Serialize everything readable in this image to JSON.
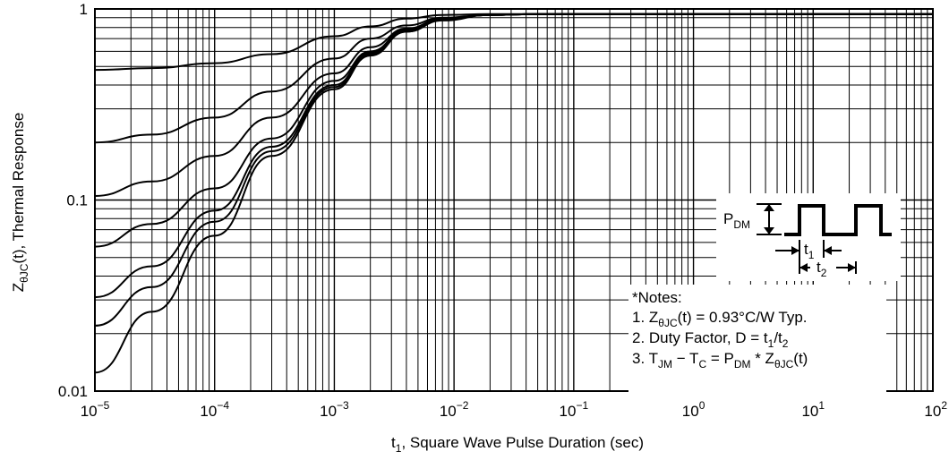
{
  "chart_data": {
    "type": "line",
    "title": "",
    "xlabel": {
      "base": "t",
      "sub": "1",
      "rest": ", Square Wave Pulse Duration (sec)"
    },
    "ylabel": {
      "base": "Z",
      "sub": "θJC",
      "rest": "(t), Thermal Response"
    },
    "x_scale": "log",
    "y_scale": "log",
    "xlim": [
      1e-05,
      100
    ],
    "ylim": [
      0.01,
      1
    ],
    "grid": true,
    "x_ticks": [
      {
        "base": "10",
        "exp": "−5",
        "value": 1e-05
      },
      {
        "base": "10",
        "exp": "−4",
        "value": 0.0001
      },
      {
        "base": "10",
        "exp": "−3",
        "value": 0.001
      },
      {
        "base": "10",
        "exp": "−2",
        "value": 0.01
      },
      {
        "base": "10",
        "exp": "−1",
        "value": 0.1
      },
      {
        "base": "10",
        "exp": "0",
        "value": 1
      },
      {
        "base": "10",
        "exp": "1",
        "value": 10
      },
      {
        "base": "10",
        "exp": "2",
        "value": 100
      }
    ],
    "y_ticks": [
      {
        "label": "1",
        "value": 1
      },
      {
        "label": "0.1",
        "value": 0.1
      },
      {
        "label": "0.01",
        "value": 0.01
      }
    ],
    "series": [
      {
        "x": [
          1e-05,
          3e-05,
          0.0001,
          0.0003,
          0.001,
          0.002,
          0.004,
          0.008,
          0.02,
          0.05,
          0.1,
          1,
          10,
          100
        ],
        "y": [
          0.48,
          0.49,
          0.52,
          0.58,
          0.72,
          0.81,
          0.89,
          0.93,
          0.94,
          0.94,
          0.94,
          0.94,
          0.94,
          0.94
        ]
      },
      {
        "x": [
          1e-05,
          3e-05,
          0.0001,
          0.0003,
          0.001,
          0.002,
          0.004,
          0.008,
          0.02,
          0.05,
          0.1,
          1,
          10,
          100
        ],
        "y": [
          0.2,
          0.22,
          0.27,
          0.37,
          0.55,
          0.7,
          0.82,
          0.9,
          0.93,
          0.94,
          0.94,
          0.94,
          0.94,
          0.94
        ]
      },
      {
        "x": [
          1e-05,
          3e-05,
          0.0001,
          0.0003,
          0.001,
          0.002,
          0.004,
          0.008,
          0.02,
          0.05,
          0.1,
          1,
          10,
          100
        ],
        "y": [
          0.105,
          0.125,
          0.17,
          0.27,
          0.46,
          0.63,
          0.79,
          0.89,
          0.93,
          0.94,
          0.94,
          0.94,
          0.94,
          0.94
        ]
      },
      {
        "x": [
          1e-05,
          3e-05,
          0.0001,
          0.0003,
          0.001,
          0.002,
          0.004,
          0.008,
          0.02,
          0.05,
          0.1,
          1,
          10,
          100
        ],
        "y": [
          0.057,
          0.075,
          0.115,
          0.21,
          0.42,
          0.6,
          0.78,
          0.88,
          0.93,
          0.94,
          0.94,
          0.94,
          0.94,
          0.94
        ]
      },
      {
        "x": [
          1e-05,
          3e-05,
          0.0001,
          0.0003,
          0.001,
          0.002,
          0.004,
          0.008,
          0.02,
          0.05,
          0.1,
          1,
          10,
          100
        ],
        "y": [
          0.031,
          0.045,
          0.088,
          0.19,
          0.4,
          0.59,
          0.77,
          0.88,
          0.93,
          0.94,
          0.94,
          0.94,
          0.94,
          0.94
        ]
      },
      {
        "x": [
          1e-05,
          3e-05,
          0.0001,
          0.0003,
          0.001,
          0.002,
          0.004,
          0.008,
          0.02,
          0.05,
          0.1,
          1,
          10,
          100
        ],
        "y": [
          0.022,
          0.035,
          0.077,
          0.18,
          0.39,
          0.58,
          0.76,
          0.88,
          0.93,
          0.94,
          0.94,
          0.94,
          0.94,
          0.94
        ]
      },
      {
        "x": [
          1e-05,
          3e-05,
          0.0001,
          0.0003,
          0.001,
          0.002,
          0.004,
          0.008,
          0.02,
          0.05,
          0.1,
          1,
          10,
          100
        ],
        "y": [
          0.0125,
          0.026,
          0.065,
          0.17,
          0.38,
          0.57,
          0.76,
          0.87,
          0.93,
          0.94,
          0.94,
          0.94,
          0.94,
          0.94
        ]
      }
    ],
    "inset": {
      "pdm": {
        "base": "P",
        "sub": "DM"
      },
      "t1": {
        "base": "t",
        "sub": "1"
      },
      "t2": {
        "base": "t",
        "sub": "2"
      }
    },
    "notes": {
      "heading": "*Notes:",
      "line1": {
        "a": "1. Z",
        "a_sub": "θJC",
        "b": "(t) = 0.93°C/W Typ."
      },
      "line2": {
        "a": "2. Duty Factor, D = t",
        "a_sub": "1",
        "b": "/t",
        "b_sub": "2"
      },
      "line3": {
        "a": "3. T",
        "a_sub": "JM",
        "b": " − T",
        "b_sub": "C",
        "c": " = P",
        "c_sub": "DM",
        "d": " * Z",
        "d_sub": "θJC",
        "e": "(t)"
      }
    }
  }
}
